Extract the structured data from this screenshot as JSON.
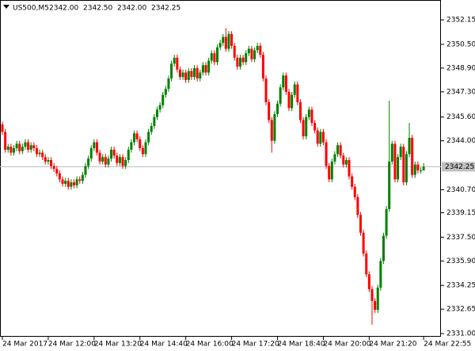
{
  "chart_data": {
    "type": "candlestick",
    "symbol": "US500,M5",
    "ohlc_labels": [
      "2342.00",
      "2342.50",
      "2342.00",
      "2342.25"
    ],
    "up_color": "#008000",
    "down_color": "#ff0000",
    "current_price": 2342.25,
    "ylim": [
      2330.79,
      2353.49
    ],
    "yticks": [
      2352.15,
      {
        "value": 2350.5,
        "label": "2350.50"
      },
      {
        "value": 2348.9,
        "label": "2348.90"
      },
      {
        "value": 2347.3,
        "label": "2347.30"
      },
      {
        "value": 2345.6,
        "label": "2345.60"
      },
      {
        "value": 2344,
        "label": "2344.00"
      },
      {
        "value": 2340.7,
        "label": "2340.70"
      },
      2339.15,
      {
        "value": 2337.5,
        "label": "2337.50"
      },
      {
        "value": 2335.9,
        "label": "2335.90"
      },
      2334.25,
      2332.65,
      {
        "value": 2331,
        "label": "2331.00"
      }
    ],
    "categories": [
      "24 Mar 2017",
      null,
      null,
      null,
      null,
      null,
      null,
      null,
      null,
      null,
      null,
      null,
      null,
      null,
      null,
      null,
      "24 Mar 12:00",
      null,
      null,
      null,
      null,
      null,
      null,
      null,
      null,
      null,
      null,
      null,
      null,
      null,
      null,
      null,
      "24 Mar 13:20",
      null,
      null,
      null,
      null,
      null,
      null,
      null,
      null,
      null,
      null,
      null,
      null,
      null,
      null,
      null,
      "24 Mar 14:40",
      null,
      null,
      null,
      null,
      null,
      null,
      null,
      null,
      null,
      null,
      null,
      null,
      null,
      null,
      null,
      "24 Mar 16:00",
      null,
      null,
      null,
      null,
      null,
      null,
      null,
      null,
      null,
      null,
      null,
      null,
      null,
      null,
      null,
      "24 Mar 17:20",
      null,
      null,
      null,
      null,
      null,
      null,
      null,
      null,
      null,
      null,
      null,
      null,
      null,
      null,
      null,
      "24 Mar 18:40",
      null,
      null,
      null,
      null,
      null,
      null,
      null,
      null,
      null,
      null,
      null,
      null,
      null,
      null,
      null,
      "24 Mar 20:00",
      null,
      null,
      null,
      null,
      null,
      null,
      null,
      null,
      null,
      null,
      null,
      null,
      null,
      null,
      null,
      "24 Mar 21:20",
      null,
      null,
      null,
      null,
      null,
      null,
      null,
      null,
      null,
      null,
      null,
      null,
      null,
      null,
      null,
      null,
      null,
      null,
      "24 Mar 22:55"
    ],
    "open": [
      2345.1,
      2344.6,
      2343.4,
      2343.6,
      2343.2,
      2343.5,
      2343.8,
      2343.3,
      2343.6,
      2343.9,
      2343.4,
      2343.7,
      2343.5,
      2343.1,
      2343.2,
      2342.9,
      2342.6,
      2342.7,
      2342.3,
      2342.1,
      2341.8,
      2341.4,
      2341.1,
      2341.3,
      2340.9,
      2341.2,
      2341.0,
      2341.4,
      2341.3,
      2341.7,
      2342.3,
      2342.8,
      2343.5,
      2343.9,
      2343.2,
      2342.6,
      2342.9,
      2342.4,
      2342.8,
      2343.4,
      2343.0,
      2342.5,
      2342.9,
      2342.3,
      2342.7,
      2343.4,
      2343.9,
      2344.5,
      2344.1,
      2343.5,
      2343.1,
      2343.9,
      2344.6,
      2345.0,
      2345.6,
      2346.1,
      2346.4,
      2347.1,
      2347.5,
      2348.2,
      2349.2,
      2349.6,
      2348.8,
      2348.3,
      2348.6,
      2348.1,
      2348.7,
      2348.3,
      2348.9,
      2348.2,
      2348.6,
      2349.1,
      2348.6,
      2349.4,
      2349.9,
      2349.3,
      2350.3,
      2350.6,
      2351.0,
      2350.2,
      2351.2,
      2350.4,
      2349.6,
      2349.0,
      2349.6,
      2349.3,
      2349.9,
      2350.2,
      2349.5,
      2350.1,
      2350.4,
      2349.8,
      2348.2,
      2346.6,
      2345.4,
      2344.0,
      2345.8,
      2346.5,
      2347.6,
      2348.4,
      2347.3,
      2346.2,
      2347.1,
      2347.8,
      2346.6,
      2345.4,
      2344.3,
      2345.6,
      2346.1,
      2345.2,
      2344.7,
      2343.8,
      2344.6,
      2343.9,
      2342.3,
      2341.4,
      2342.6,
      2343.1,
      2343.7,
      2343.0,
      2342.4,
      2342.7,
      2341.6,
      2340.9,
      2340.2,
      2339.0,
      2337.8,
      2336.4,
      2335.0,
      2334.0,
      2333.2,
      2332.6,
      2334.1,
      2335.9,
      2337.6,
      2339.4,
      2342.6,
      2343.8,
      2341.4,
      2342.9,
      2343.6,
      2341.2,
      2343.1,
      2344.2,
      2341.7,
      2342.4,
      2342.0,
      2342.0
    ],
    "high": [
      2345.3,
      2344.8,
      2343.8,
      2343.8,
      2343.7,
      2344.0,
      2344.0,
      2343.8,
      2344.1,
      2344.1,
      2343.9,
      2343.9,
      2343.7,
      2343.4,
      2343.4,
      2343.1,
      2342.9,
      2342.9,
      2342.5,
      2342.3,
      2342.0,
      2341.6,
      2341.5,
      2341.5,
      2341.4,
      2341.4,
      2341.6,
      2341.6,
      2341.9,
      2342.5,
      2343.0,
      2343.7,
      2344.1,
      2344.1,
      2343.4,
      2343.1,
      2343.1,
      2343.0,
      2343.6,
      2343.6,
      2343.2,
      2343.1,
      2343.1,
      2342.9,
      2343.6,
      2344.1,
      2344.7,
      2344.7,
      2344.3,
      2343.7,
      2344.1,
      2344.8,
      2345.2,
      2345.8,
      2346.3,
      2346.6,
      2347.3,
      2347.7,
      2348.4,
      2349.4,
      2349.8,
      2349.8,
      2349.0,
      2348.8,
      2348.8,
      2348.9,
      2348.9,
      2349.1,
      2349.1,
      2348.8,
      2349.3,
      2349.3,
      2349.6,
      2350.1,
      2350.1,
      2350.5,
      2350.8,
      2351.2,
      2351.6,
      2351.4,
      2351.4,
      2350.6,
      2349.8,
      2349.8,
      2349.8,
      2350.1,
      2350.4,
      2350.4,
      2350.3,
      2350.6,
      2350.6,
      2350.0,
      2348.4,
      2346.8,
      2345.6,
      2346.0,
      2346.7,
      2347.8,
      2348.6,
      2348.6,
      2347.5,
      2347.3,
      2348.0,
      2348.0,
      2346.8,
      2345.6,
      2345.8,
      2346.3,
      2346.3,
      2345.4,
      2344.9,
      2344.8,
      2344.8,
      2344.1,
      2342.5,
      2342.8,
      2343.3,
      2343.9,
      2343.9,
      2343.2,
      2342.9,
      2342.9,
      2341.8,
      2341.1,
      2340.4,
      2339.2,
      2338.0,
      2336.6,
      2335.2,
      2334.2,
      2333.4,
      2334.3,
      2336.1,
      2337.8,
      2339.6,
      2346.7,
      2344.0,
      2344.0,
      2343.1,
      2343.8,
      2343.8,
      2343.3,
      2345.2,
      2344.4,
      2342.6,
      2342.6,
      2342.2,
      2342.5
    ],
    "low": [
      2344.4,
      2343.2,
      2343.2,
      2343.0,
      2343.0,
      2343.3,
      2343.1,
      2343.1,
      2343.4,
      2343.2,
      2343.2,
      2343.3,
      2342.9,
      2342.9,
      2342.7,
      2342.4,
      2342.4,
      2342.1,
      2341.9,
      2341.6,
      2341.2,
      2340.9,
      2340.9,
      2340.7,
      2340.7,
      2340.8,
      2340.8,
      2341.1,
      2341.1,
      2341.5,
      2342.1,
      2342.6,
      2343.3,
      2343.0,
      2342.4,
      2342.4,
      2342.2,
      2342.2,
      2342.6,
      2342.8,
      2342.3,
      2342.3,
      2342.1,
      2342.1,
      2342.5,
      2343.2,
      2343.7,
      2343.9,
      2343.3,
      2342.9,
      2342.9,
      2343.7,
      2344.4,
      2344.8,
      2345.4,
      2345.9,
      2346.2,
      2346.9,
      2347.3,
      2348.0,
      2349.0,
      2348.6,
      2348.1,
      2348.1,
      2347.9,
      2347.9,
      2348.1,
      2348.1,
      2348.0,
      2348.0,
      2348.4,
      2348.4,
      2348.4,
      2349.2,
      2349.1,
      2349.1,
      2350.1,
      2350.4,
      2350.0,
      2350.0,
      2350.2,
      2349.4,
      2348.8,
      2348.8,
      2349.1,
      2349.1,
      2349.7,
      2349.3,
      2349.3,
      2349.9,
      2349.6,
      2348.0,
      2346.4,
      2345.2,
      2343.2,
      2343.8,
      2345.6,
      2346.3,
      2347.4,
      2347.1,
      2346.0,
      2346.0,
      2346.9,
      2346.4,
      2345.2,
      2344.1,
      2344.1,
      2345.4,
      2345.0,
      2344.5,
      2343.6,
      2343.6,
      2343.7,
      2342.1,
      2341.2,
      2341.2,
      2342.4,
      2342.9,
      2342.8,
      2342.2,
      2342.2,
      2341.4,
      2340.7,
      2340.0,
      2338.8,
      2337.6,
      2336.2,
      2334.8,
      2333.8,
      2331.6,
      2332.4,
      2332.4,
      2333.9,
      2335.7,
      2337.4,
      2339.2,
      2342.4,
      2341.2,
      2341.2,
      2342.7,
      2341.0,
      2341.0,
      2342.9,
      2341.5,
      2341.5,
      2341.8,
      2341.8,
      2342.0
    ],
    "close": [
      2344.6,
      2343.4,
      2343.6,
      2343.2,
      2343.5,
      2343.8,
      2343.3,
      2343.6,
      2343.9,
      2343.4,
      2343.7,
      2343.5,
      2343.1,
      2343.2,
      2342.9,
      2342.6,
      2342.7,
      2342.3,
      2342.1,
      2341.8,
      2341.4,
      2341.1,
      2341.3,
      2340.9,
      2341.2,
      2341.0,
      2341.4,
      2341.3,
      2341.7,
      2342.3,
      2342.8,
      2343.5,
      2343.9,
      2343.2,
      2342.6,
      2342.9,
      2342.4,
      2342.8,
      2343.4,
      2343.0,
      2342.5,
      2342.9,
      2342.3,
      2342.7,
      2343.4,
      2343.9,
      2344.5,
      2344.1,
      2343.5,
      2343.1,
      2343.9,
      2344.6,
      2345.0,
      2345.6,
      2346.1,
      2346.4,
      2347.1,
      2347.5,
      2348.2,
      2349.2,
      2349.6,
      2348.8,
      2348.3,
      2348.6,
      2348.1,
      2348.7,
      2348.3,
      2348.9,
      2348.2,
      2348.6,
      2349.1,
      2348.6,
      2349.4,
      2349.9,
      2349.3,
      2350.3,
      2350.6,
      2351.0,
      2350.2,
      2351.2,
      2350.4,
      2349.6,
      2349.0,
      2349.6,
      2349.3,
      2349.9,
      2350.2,
      2349.5,
      2350.1,
      2350.4,
      2349.8,
      2348.2,
      2346.6,
      2345.4,
      2344.0,
      2345.8,
      2346.5,
      2347.6,
      2348.4,
      2347.3,
      2346.2,
      2347.1,
      2347.8,
      2346.6,
      2345.4,
      2344.3,
      2345.6,
      2346.1,
      2345.2,
      2344.7,
      2343.8,
      2344.6,
      2343.9,
      2342.3,
      2341.4,
      2342.6,
      2343.1,
      2343.7,
      2343.0,
      2342.4,
      2342.7,
      2341.6,
      2340.9,
      2340.2,
      2339.0,
      2337.8,
      2336.4,
      2335.0,
      2334.0,
      2333.2,
      2332.6,
      2334.1,
      2335.9,
      2337.6,
      2339.4,
      2342.6,
      2343.8,
      2341.4,
      2342.9,
      2343.6,
      2341.2,
      2343.1,
      2344.2,
      2341.7,
      2342.4,
      2342.0,
      2342.0,
      2342.25
    ]
  }
}
